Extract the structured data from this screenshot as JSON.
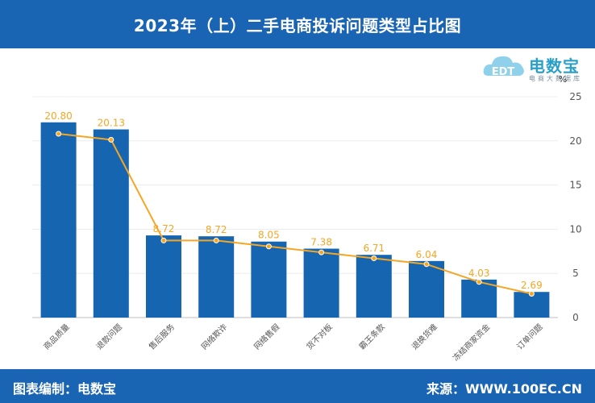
{
  "header": {
    "title": "2023年（上）二手电商投诉问题类型占比图"
  },
  "logo": {
    "name": "电数宝",
    "sub": "电商大数据库",
    "mark": "EDT"
  },
  "footer": {
    "left": "图表编制：电数宝",
    "right": "来源：WWW.100EC.CN"
  },
  "colors": {
    "bar": "#1565b0",
    "line": "#f5a623",
    "header_bg": "#1a64b4"
  },
  "chart_data": {
    "type": "bar",
    "categories": [
      "商品质量",
      "退款问题",
      "售后服务",
      "网络欺诈",
      "网络售假",
      "货不对板",
      "霸王条款",
      "退换货难",
      "冻结商家资金",
      "订单问题"
    ],
    "series": [
      {
        "type": "bar",
        "values": [
          22.1,
          21.3,
          9.3,
          9.2,
          8.6,
          7.8,
          7.1,
          6.4,
          4.3,
          2.9
        ]
      },
      {
        "type": "line",
        "values": [
          20.8,
          20.13,
          8.72,
          8.72,
          8.05,
          7.38,
          6.71,
          6.04,
          4.03,
          2.69
        ]
      }
    ],
    "data_labels": [
      "20.80",
      "20.13",
      "8.72",
      "8.72",
      "8.05",
      "7.38",
      "6.71",
      "6.04",
      "4.03",
      "2.69"
    ],
    "y_axis": {
      "side": "right",
      "unit": "%",
      "ticks": [
        "0",
        "5",
        "10",
        "15",
        "20",
        "25"
      ]
    },
    "ylim": [
      0,
      25
    ],
    "grid": true
  }
}
